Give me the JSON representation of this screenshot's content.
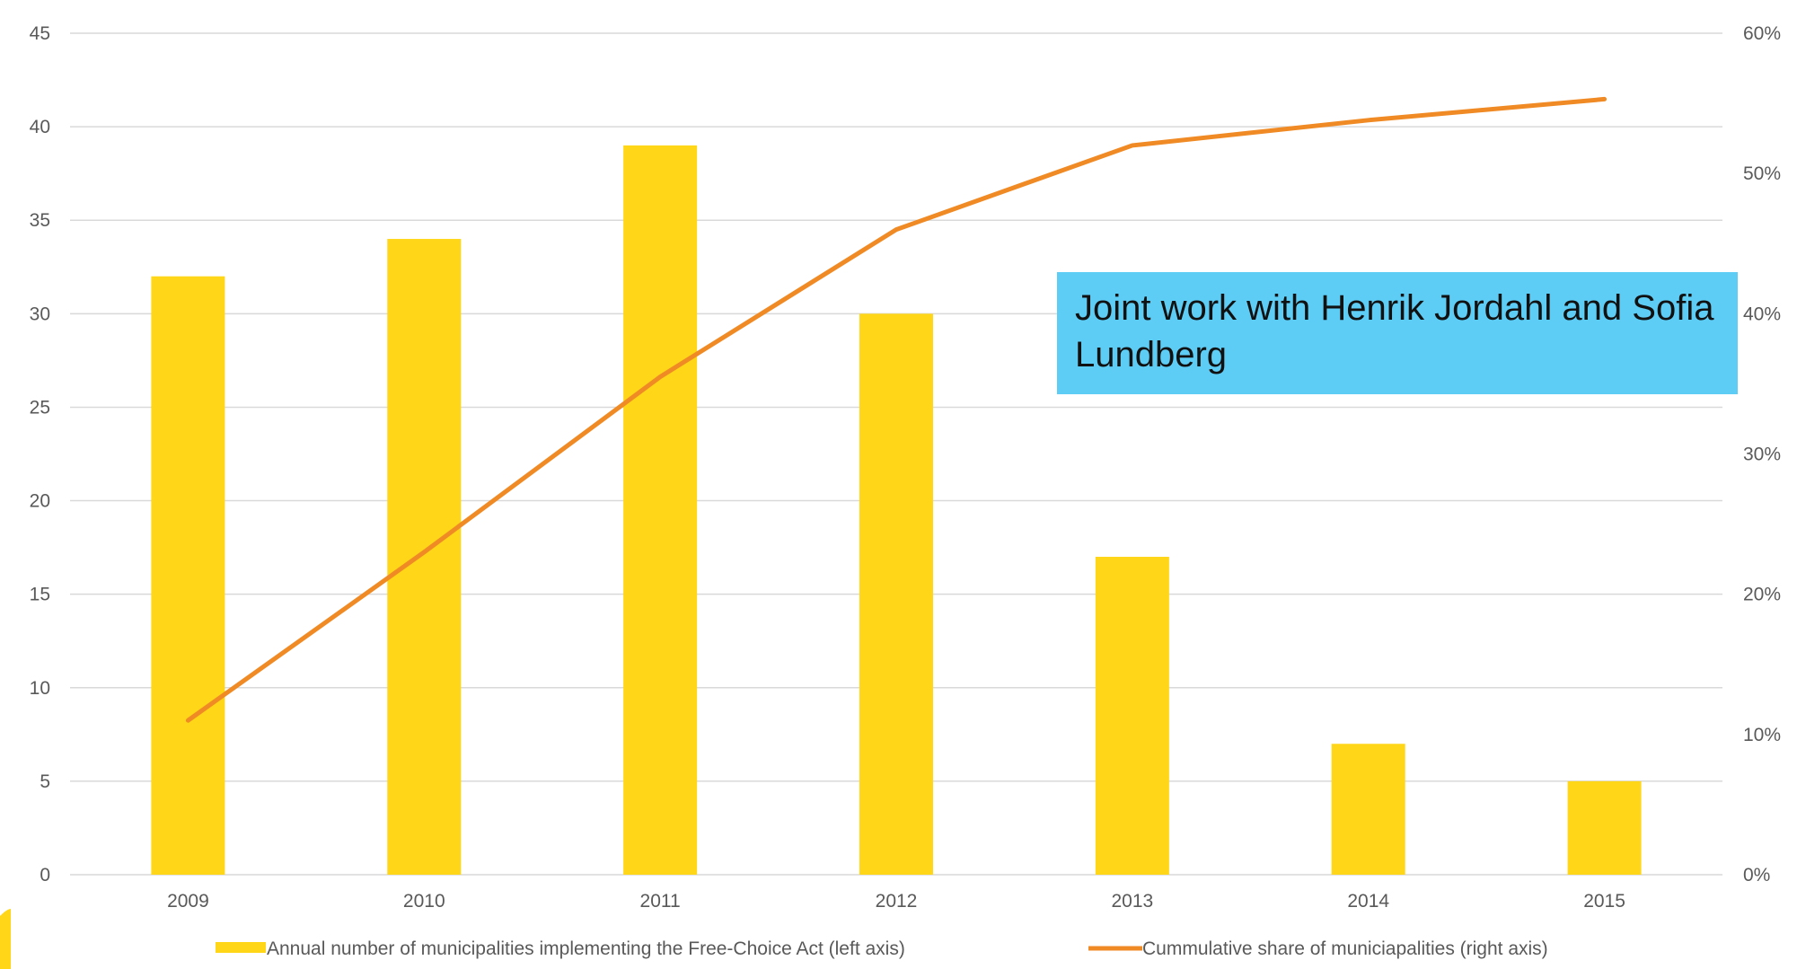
{
  "callout": {
    "text": "Joint work with Henrik Jordahl and Sofia Lundberg"
  },
  "colors": {
    "bar": "#FFD618",
    "line": "#F08A24",
    "grid": "#D9D9D9",
    "tick_text": "#595959",
    "callout_bg": "#5ECDF5",
    "accent_shape": "#FFD618"
  },
  "chart_data": {
    "type": "bar",
    "categories": [
      "2009",
      "2010",
      "2011",
      "2012",
      "2013",
      "2014",
      "2015"
    ],
    "series": [
      {
        "name": "Annual number of municipalities implementing the Free-Choice Act (left axis)",
        "type": "bar",
        "axis": "left",
        "values": [
          32,
          34,
          39,
          30,
          17,
          7,
          5
        ]
      },
      {
        "name": "Cummulative share of municiapalities (right axis)",
        "type": "line",
        "axis": "right",
        "values": [
          0.11,
          0.23,
          0.355,
          0.46,
          0.52,
          0.538,
          0.553
        ]
      }
    ],
    "y_left": {
      "ylim": [
        0,
        45
      ],
      "ticks": [
        0,
        5,
        10,
        15,
        20,
        25,
        30,
        35,
        40,
        45
      ]
    },
    "y_right": {
      "ylim": [
        0,
        0.6
      ],
      "ticks": [
        0,
        0.1,
        0.2,
        0.3,
        0.4,
        0.5,
        0.6
      ],
      "tick_labels": [
        "0%",
        "10%",
        "20%",
        "30%",
        "40%",
        "50%",
        "60%"
      ]
    },
    "grid": true,
    "legend_position": "bottom"
  }
}
